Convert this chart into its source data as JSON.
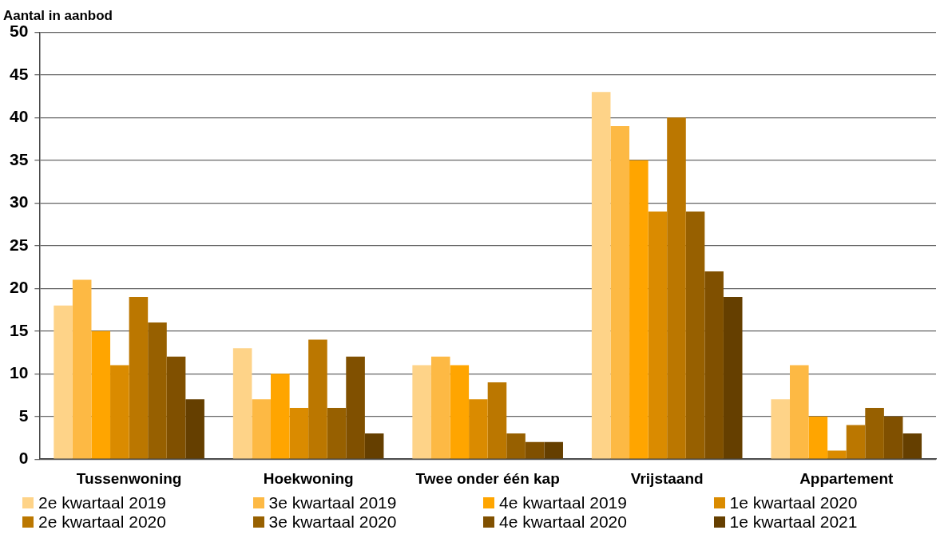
{
  "chart_data": {
    "type": "bar",
    "ylabel": "Aantal in aanbod",
    "categories": [
      "Tussenwoning",
      "Hoekwoning",
      "Twee onder één kap",
      "Vrijstaand",
      "Appartement"
    ],
    "series": [
      {
        "name": "2e kwartaal 2019",
        "color": "#fed388",
        "values": [
          18,
          13,
          11,
          43,
          7
        ]
      },
      {
        "name": "3e kwartaal 2019",
        "color": "#fdb944",
        "values": [
          21,
          7,
          12,
          39,
          11
        ]
      },
      {
        "name": "4e kwartaal 2019",
        "color": "#ffa500",
        "values": [
          15,
          10,
          11,
          35,
          5
        ]
      },
      {
        "name": "1e kwartaal 2020",
        "color": "#da8b00",
        "values": [
          11,
          6,
          7,
          29,
          1
        ]
      },
      {
        "name": "2e kwartaal 2020",
        "color": "#bb7700",
        "values": [
          19,
          14,
          9,
          40,
          4
        ]
      },
      {
        "name": "3e kwartaal 2020",
        "color": "#976000",
        "values": [
          16,
          6,
          3,
          29,
          6
        ]
      },
      {
        "name": "4e kwartaal 2020",
        "color": "#805000",
        "values": [
          12,
          12,
          2,
          22,
          5
        ]
      },
      {
        "name": "1e kwartaal 2021",
        "color": "#653f00",
        "values": [
          7,
          3,
          2,
          19,
          3
        ]
      }
    ],
    "ylim": [
      0,
      50
    ],
    "yticks": [
      0,
      5,
      10,
      15,
      20,
      25,
      30,
      35,
      40,
      45,
      50
    ],
    "grid": "y",
    "legend": "bottom"
  }
}
